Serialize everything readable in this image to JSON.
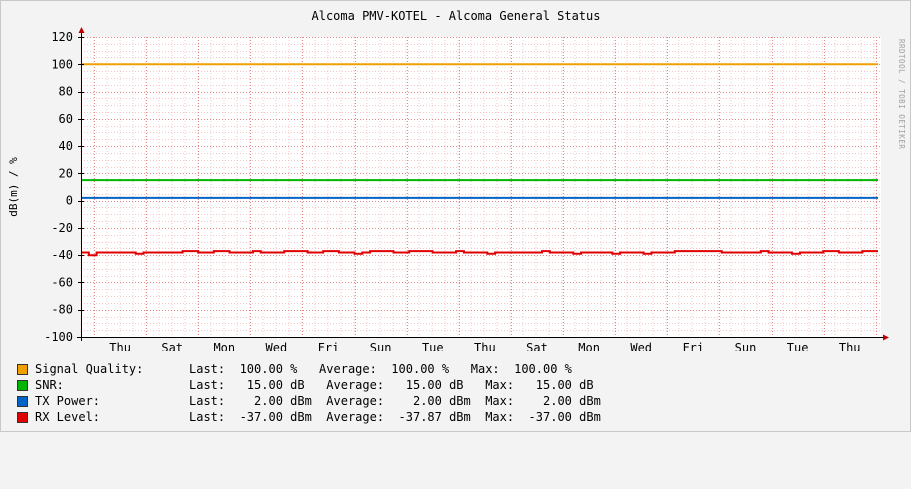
{
  "chart_data": {
    "type": "line",
    "title": "Alcoma PMV-KOTEL - Alcoma General Status",
    "ylabel": "dB(m) / %",
    "watermark": "RRDTOOL / TOBI OETIKER",
    "ylim": [
      -100,
      120
    ],
    "yticks": [
      "120",
      "100",
      "80",
      "60",
      "40",
      "20",
      "0",
      "-20",
      "-40",
      "-60",
      "-80",
      "-100"
    ],
    "xticks": [
      "Thu",
      "Sat",
      "Mon",
      "Wed",
      "Fri",
      "Sun",
      "Tue",
      "Thu",
      "Sat",
      "Mon",
      "Wed",
      "Fri",
      "Sun",
      "Tue",
      "Thu"
    ],
    "series": [
      {
        "name": "Signal Quality:",
        "color": "#f0a000",
        "values": [
          100,
          100
        ]
      },
      {
        "name": "SNR:",
        "color": "#00b400",
        "values": [
          15,
          15
        ]
      },
      {
        "name": "TX Power:",
        "color": "#0064c8",
        "values": [
          2,
          2
        ]
      },
      {
        "name": "RX Level:",
        "color": "#e00000",
        "values": [
          -38,
          -40,
          -38,
          -38,
          -38,
          -38,
          -38,
          -39,
          -38,
          -38,
          -38,
          -38,
          -38,
          -37,
          -37,
          -38,
          -38,
          -37,
          -37,
          -38,
          -38,
          -38,
          -37,
          -38,
          -38,
          -38,
          -37,
          -37,
          -37,
          -38,
          -38,
          -37,
          -37,
          -38,
          -38,
          -39,
          -38,
          -37,
          -37,
          -37,
          -38,
          -38,
          -37,
          -37,
          -37,
          -38,
          -38,
          -38,
          -37,
          -38,
          -38,
          -38,
          -39,
          -38,
          -38,
          -38,
          -38,
          -38,
          -38,
          -37,
          -38,
          -38,
          -38,
          -39,
          -38,
          -38,
          -38,
          -38,
          -39,
          -38,
          -38,
          -38,
          -39,
          -38,
          -38,
          -38,
          -37,
          -37,
          -37,
          -37,
          -37,
          -37,
          -38,
          -38,
          -38,
          -38,
          -38,
          -37,
          -38,
          -38,
          -38,
          -39,
          -38,
          -38,
          -38,
          -37,
          -37,
          -38,
          -38,
          -38,
          -37,
          -37
        ]
      }
    ]
  },
  "legend": [
    {
      "name": "Signal Quality:",
      "color": "#f0a000",
      "stats": "Last:  100.00 %   Average:  100.00 %   Max:  100.00 %"
    },
    {
      "name": "SNR:",
      "color": "#00b400",
      "stats": "Last:   15.00 dB   Average:   15.00 dB   Max:   15.00 dB"
    },
    {
      "name": "TX Power:",
      "color": "#0064c8",
      "stats": "Last:    2.00 dBm  Average:    2.00 dBm  Max:    2.00 dBm"
    },
    {
      "name": "RX Level:",
      "color": "#e00000",
      "stats": "Last:  -37.00 dBm  Average:  -37.87 dBm  Max:  -37.00 dBm"
    }
  ]
}
